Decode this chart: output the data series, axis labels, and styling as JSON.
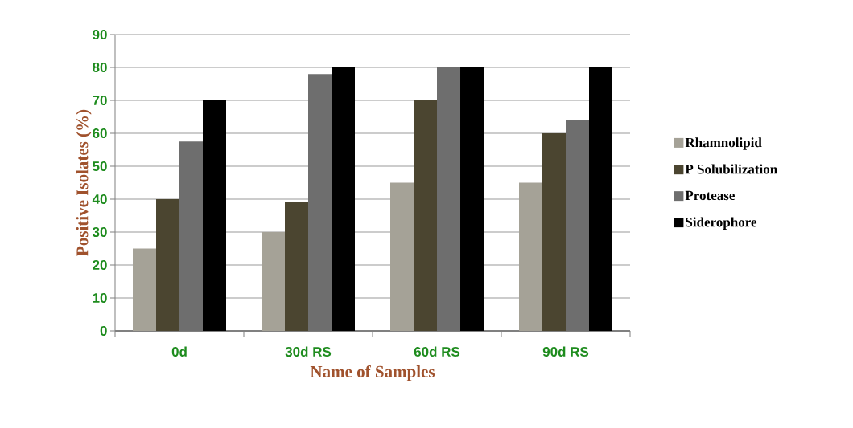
{
  "chart_data": {
    "type": "bar",
    "xlabel": "Name of Samples",
    "ylabel": "Positive Isolates (%)",
    "categories": [
      "0d",
      "30d RS",
      "60d RS",
      "90d RS"
    ],
    "series": [
      {
        "name": "Rhamnolipid",
        "color": "#a5a297",
        "values": [
          25,
          30,
          45,
          45
        ]
      },
      {
        "name": "P Solubilization",
        "color": "#4b4530",
        "values": [
          40,
          39,
          70,
          60
        ]
      },
      {
        "name": "Protease",
        "color": "#6e6e6e",
        "values": [
          57.5,
          78,
          80,
          64
        ]
      },
      {
        "name": "Siderophore",
        "color": "#000000",
        "values": [
          70,
          80,
          80,
          80
        ]
      }
    ],
    "ylim": [
      0,
      90
    ],
    "yticks": [
      0,
      10,
      20,
      30,
      40,
      50,
      60,
      70,
      80,
      90
    ],
    "grid": "y",
    "legend": "right"
  }
}
